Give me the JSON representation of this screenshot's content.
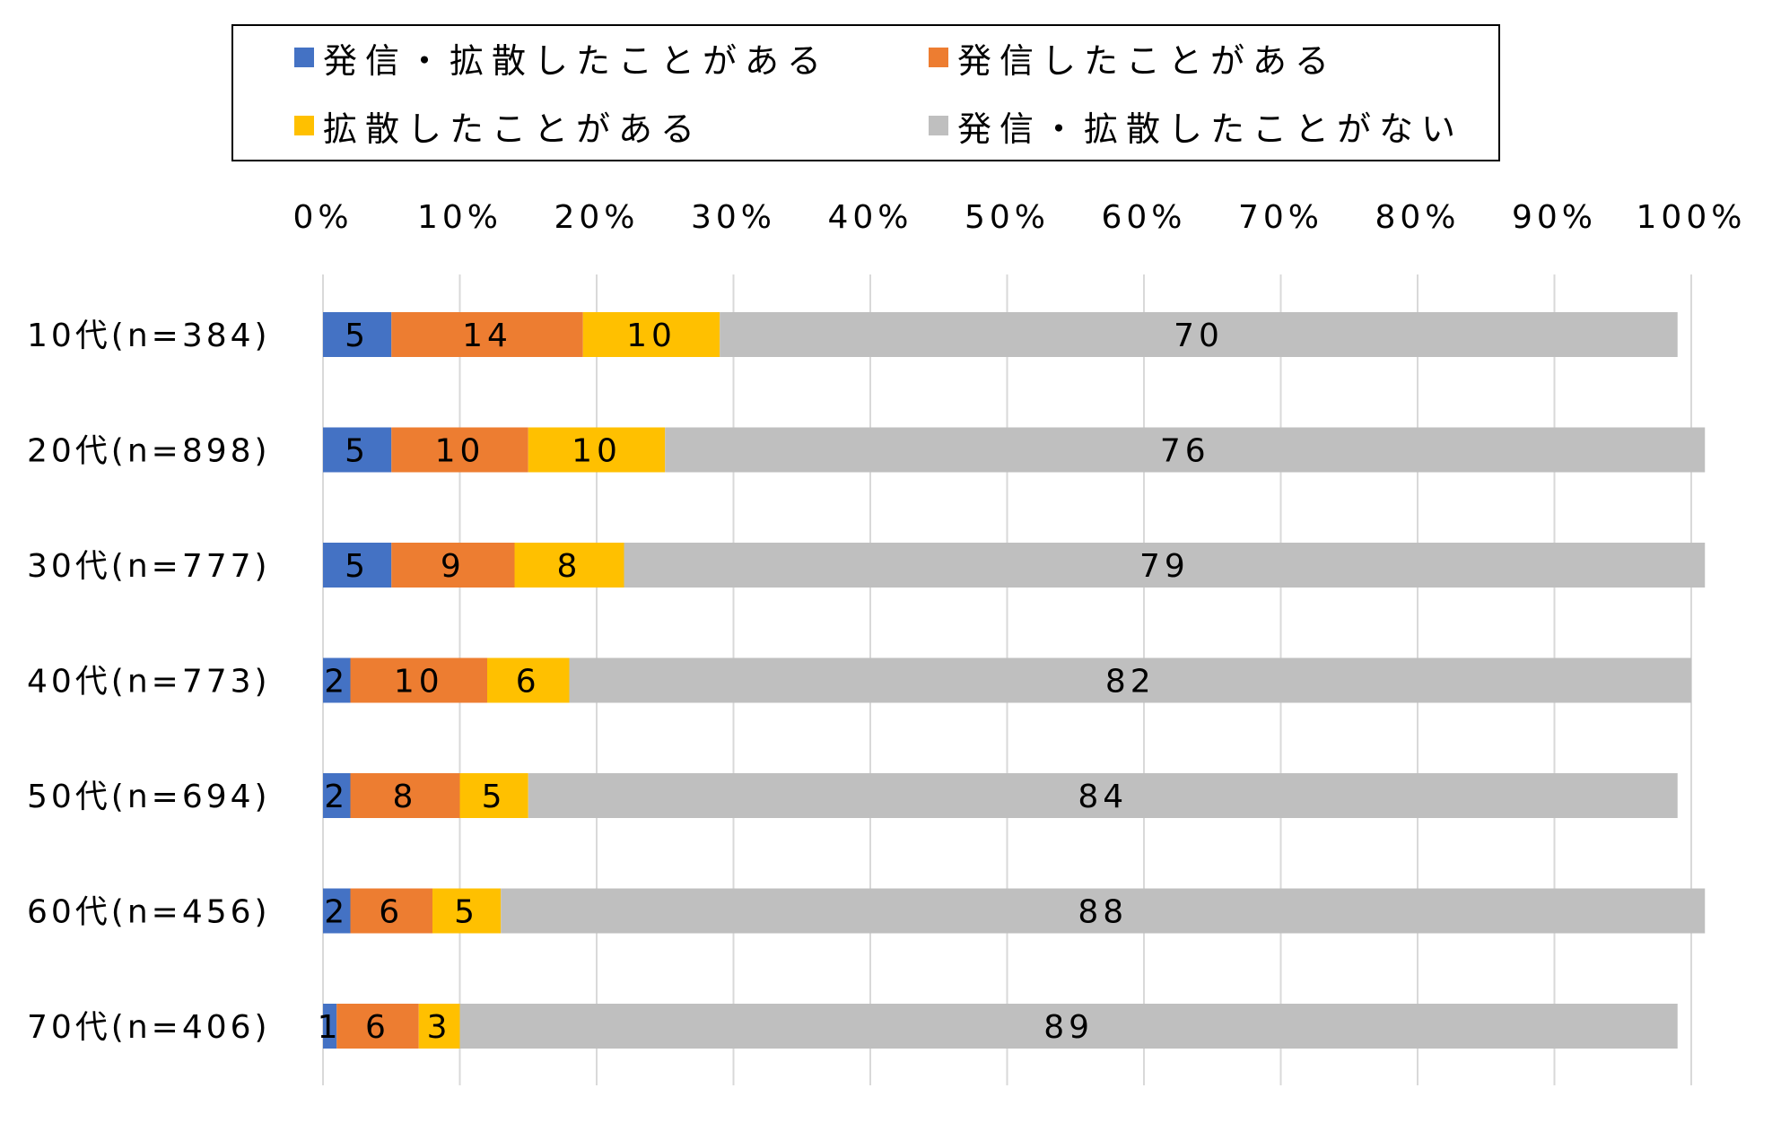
{
  "chart_data": {
    "type": "bar",
    "orientation": "horizontal",
    "stacked": true,
    "percent_stacked": true,
    "categories": [
      "10代(n=384)",
      "20代(n=898)",
      "30代(n=777)",
      "40代(n=773)",
      "50代(n=694)",
      "60代(n=456)",
      "70代(n=406)"
    ],
    "series": [
      {
        "name": "発信・拡散したことがある",
        "color": "#4472C4",
        "values": [
          5,
          5,
          5,
          2,
          2,
          2,
          1
        ]
      },
      {
        "name": "発信したことがある",
        "color": "#ED7D31",
        "values": [
          14,
          10,
          9,
          10,
          8,
          6,
          6
        ]
      },
      {
        "name": "拡散したことがある",
        "color": "#FFC000",
        "values": [
          10,
          10,
          8,
          6,
          5,
          5,
          3
        ]
      },
      {
        "name": "発信・拡散したことがない",
        "color": "#BFBFBF",
        "values": [
          70,
          76,
          79,
          82,
          84,
          88,
          89
        ]
      }
    ],
    "xlim": [
      0,
      100
    ],
    "x_ticks": [
      "0%",
      "10%",
      "20%",
      "30%",
      "40%",
      "50%",
      "60%",
      "70%",
      "80%",
      "90%",
      "100%"
    ],
    "title": "",
    "xlabel": "",
    "ylabel": "",
    "grid": "vertical",
    "legend_position": "top"
  }
}
